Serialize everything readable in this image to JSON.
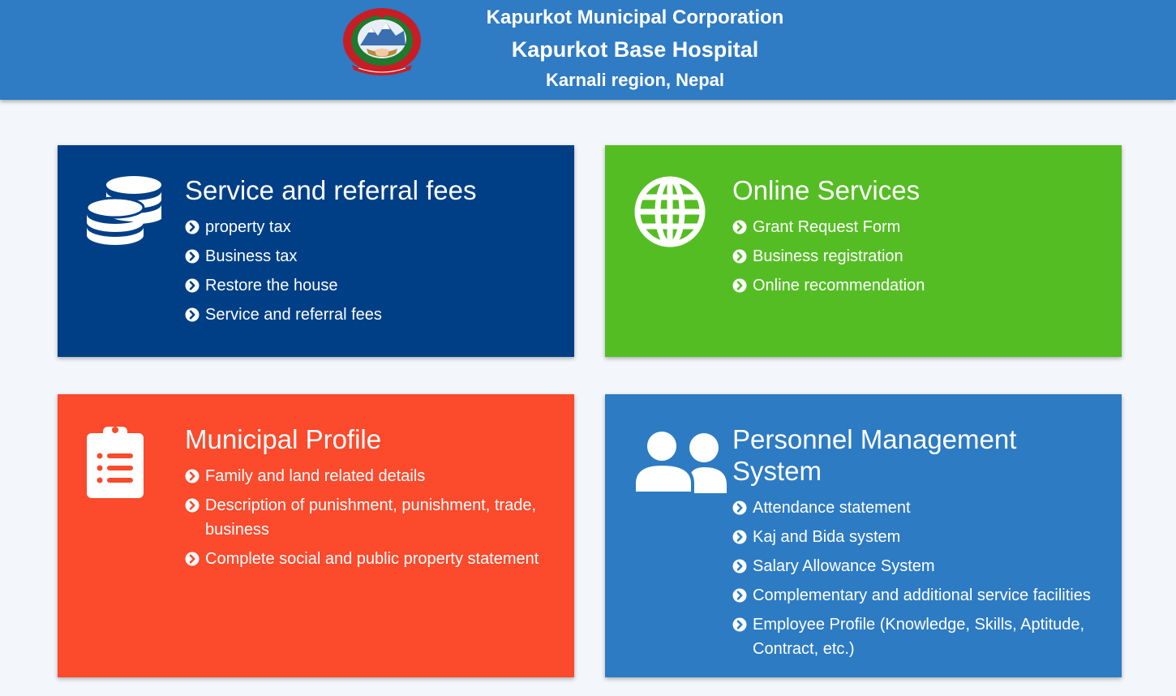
{
  "header": {
    "title_line1": "Kapurkot Municipal Corporation",
    "title_line2": "Kapurkot Base Hospital",
    "title_line3": "Karnali region, Nepal",
    "emblem_icon": "nepal-government-emblem"
  },
  "cards": [
    {
      "title": "Service and referral fees",
      "icon": "coins-icon",
      "color": "#003f86",
      "items": [
        "property tax",
        "Business tax",
        "Restore the house",
        "Service and referral fees"
      ]
    },
    {
      "title": "Online Services",
      "icon": "globe-icon",
      "color": "#55bd24",
      "items": [
        "Grant Request Form",
        "Business registration",
        "Online recommendation"
      ]
    },
    {
      "title": "Municipal Profile",
      "icon": "clipboard-list-icon",
      "color": "#fb4a2c",
      "items": [
        "Family and land related details",
        "Description of punishment, punishment, trade, business",
        "Complete social and public property statement"
      ]
    },
    {
      "title": "Personnel Management System",
      "icon": "users-icon",
      "color": "#2d7bc3",
      "items": [
        "Attendance statement",
        "Kaj and Bida system",
        "Salary Allowance System",
        "Complementary and additional service facilities",
        "Employee Profile (Knowledge, Skills, Aptitude, Contract, etc.)"
      ]
    }
  ]
}
